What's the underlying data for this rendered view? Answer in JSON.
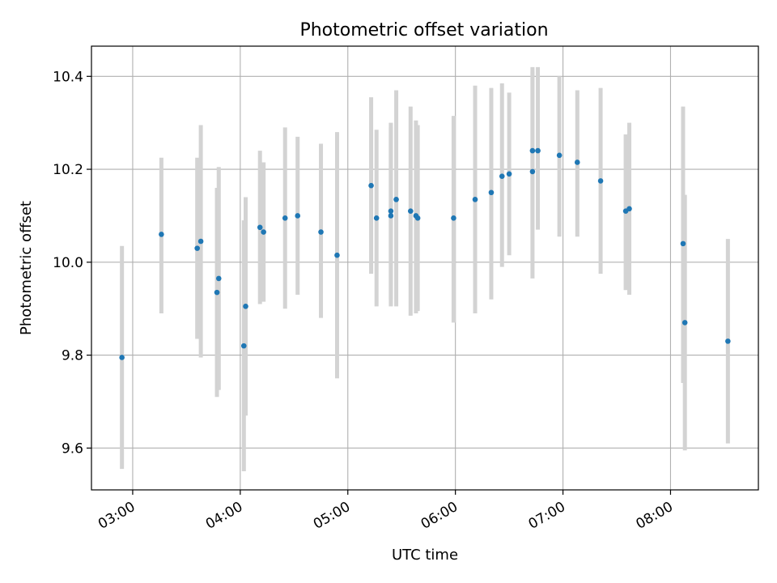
{
  "chart_data": {
    "type": "scatter",
    "title": "Photometric offset variation",
    "xlabel": "UTC time",
    "ylabel": "Photometric offset",
    "x_axis": {
      "kind": "time",
      "range": [
        "02:37",
        "08:49"
      ],
      "ticks": [
        "03:00",
        "04:00",
        "05:00",
        "06:00",
        "07:00",
        "08:00"
      ]
    },
    "y_axis": {
      "range": [
        9.51,
        10.465
      ],
      "ticks": [
        9.6,
        9.8,
        10.0,
        10.2,
        10.4
      ],
      "tick_labels": [
        "9.6",
        "9.8",
        "10.0",
        "10.2",
        "10.4"
      ]
    },
    "grid": true,
    "colors": {
      "point": "#1f77b4",
      "errorbar": "#d3d3d3",
      "grid": "#b0b0b0"
    },
    "points": [
      {
        "time": "02:54",
        "y": 9.795,
        "lo": 9.555,
        "hi": 10.035
      },
      {
        "time": "03:16",
        "y": 10.06,
        "lo": 9.89,
        "hi": 10.225
      },
      {
        "time": "03:36",
        "y": 10.03,
        "lo": 9.835,
        "hi": 10.225
      },
      {
        "time": "03:38",
        "y": 10.045,
        "lo": 9.795,
        "hi": 10.295
      },
      {
        "time": "03:47",
        "y": 9.935,
        "lo": 9.71,
        "hi": 10.16
      },
      {
        "time": "03:48",
        "y": 9.965,
        "lo": 9.725,
        "hi": 10.205
      },
      {
        "time": "04:02",
        "y": 9.82,
        "lo": 9.55,
        "hi": 10.09
      },
      {
        "time": "04:03",
        "y": 9.905,
        "lo": 9.67,
        "hi": 10.14
      },
      {
        "time": "04:11",
        "y": 10.075,
        "lo": 9.91,
        "hi": 10.24
      },
      {
        "time": "04:13",
        "y": 10.065,
        "lo": 9.915,
        "hi": 10.215
      },
      {
        "time": "04:25",
        "y": 10.095,
        "lo": 9.9,
        "hi": 10.29
      },
      {
        "time": "04:32",
        "y": 10.1,
        "lo": 9.93,
        "hi": 10.27
      },
      {
        "time": "04:45",
        "y": 10.065,
        "lo": 9.88,
        "hi": 10.255
      },
      {
        "time": "04:54",
        "y": 10.015,
        "lo": 9.75,
        "hi": 10.28
      },
      {
        "time": "05:13",
        "y": 10.165,
        "lo": 9.975,
        "hi": 10.355
      },
      {
        "time": "05:16",
        "y": 10.095,
        "lo": 9.905,
        "hi": 10.285
      },
      {
        "time": "05:24",
        "y": 10.11,
        "lo": 9.92,
        "hi": 10.3
      },
      {
        "time": "05:24",
        "y": 10.1,
        "lo": 9.905,
        "hi": 10.29
      },
      {
        "time": "05:27",
        "y": 10.135,
        "lo": 9.905,
        "hi": 10.37
      },
      {
        "time": "05:35",
        "y": 10.11,
        "lo": 9.885,
        "hi": 10.335
      },
      {
        "time": "05:38",
        "y": 10.1,
        "lo": 9.89,
        "hi": 10.305
      },
      {
        "time": "05:39",
        "y": 10.095,
        "lo": 9.895,
        "hi": 10.295
      },
      {
        "time": "05:59",
        "y": 10.095,
        "lo": 9.87,
        "hi": 10.315
      },
      {
        "time": "06:11",
        "y": 10.135,
        "lo": 9.89,
        "hi": 10.38
      },
      {
        "time": "06:20",
        "y": 10.15,
        "lo": 9.92,
        "hi": 10.375
      },
      {
        "time": "06:26",
        "y": 10.185,
        "lo": 9.99,
        "hi": 10.385
      },
      {
        "time": "06:30",
        "y": 10.19,
        "lo": 10.015,
        "hi": 10.365
      },
      {
        "time": "06:43",
        "y": 10.24,
        "lo": 10.07,
        "hi": 10.41
      },
      {
        "time": "06:43",
        "y": 10.195,
        "lo": 9.965,
        "hi": 10.42
      },
      {
        "time": "06:46",
        "y": 10.24,
        "lo": 10.07,
        "hi": 10.42
      },
      {
        "time": "06:58",
        "y": 10.23,
        "lo": 10.055,
        "hi": 10.4
      },
      {
        "time": "07:08",
        "y": 10.215,
        "lo": 10.055,
        "hi": 10.37
      },
      {
        "time": "07:21",
        "y": 10.175,
        "lo": 9.975,
        "hi": 10.375
      },
      {
        "time": "07:35",
        "y": 10.11,
        "lo": 9.94,
        "hi": 10.275
      },
      {
        "time": "07:37",
        "y": 10.115,
        "lo": 9.93,
        "hi": 10.3
      },
      {
        "time": "08:07",
        "y": 10.04,
        "lo": 9.74,
        "hi": 10.335
      },
      {
        "time": "08:08",
        "y": 9.87,
        "lo": 9.595,
        "hi": 10.145
      },
      {
        "time": "08:32",
        "y": 9.83,
        "lo": 9.61,
        "hi": 10.05
      }
    ]
  }
}
